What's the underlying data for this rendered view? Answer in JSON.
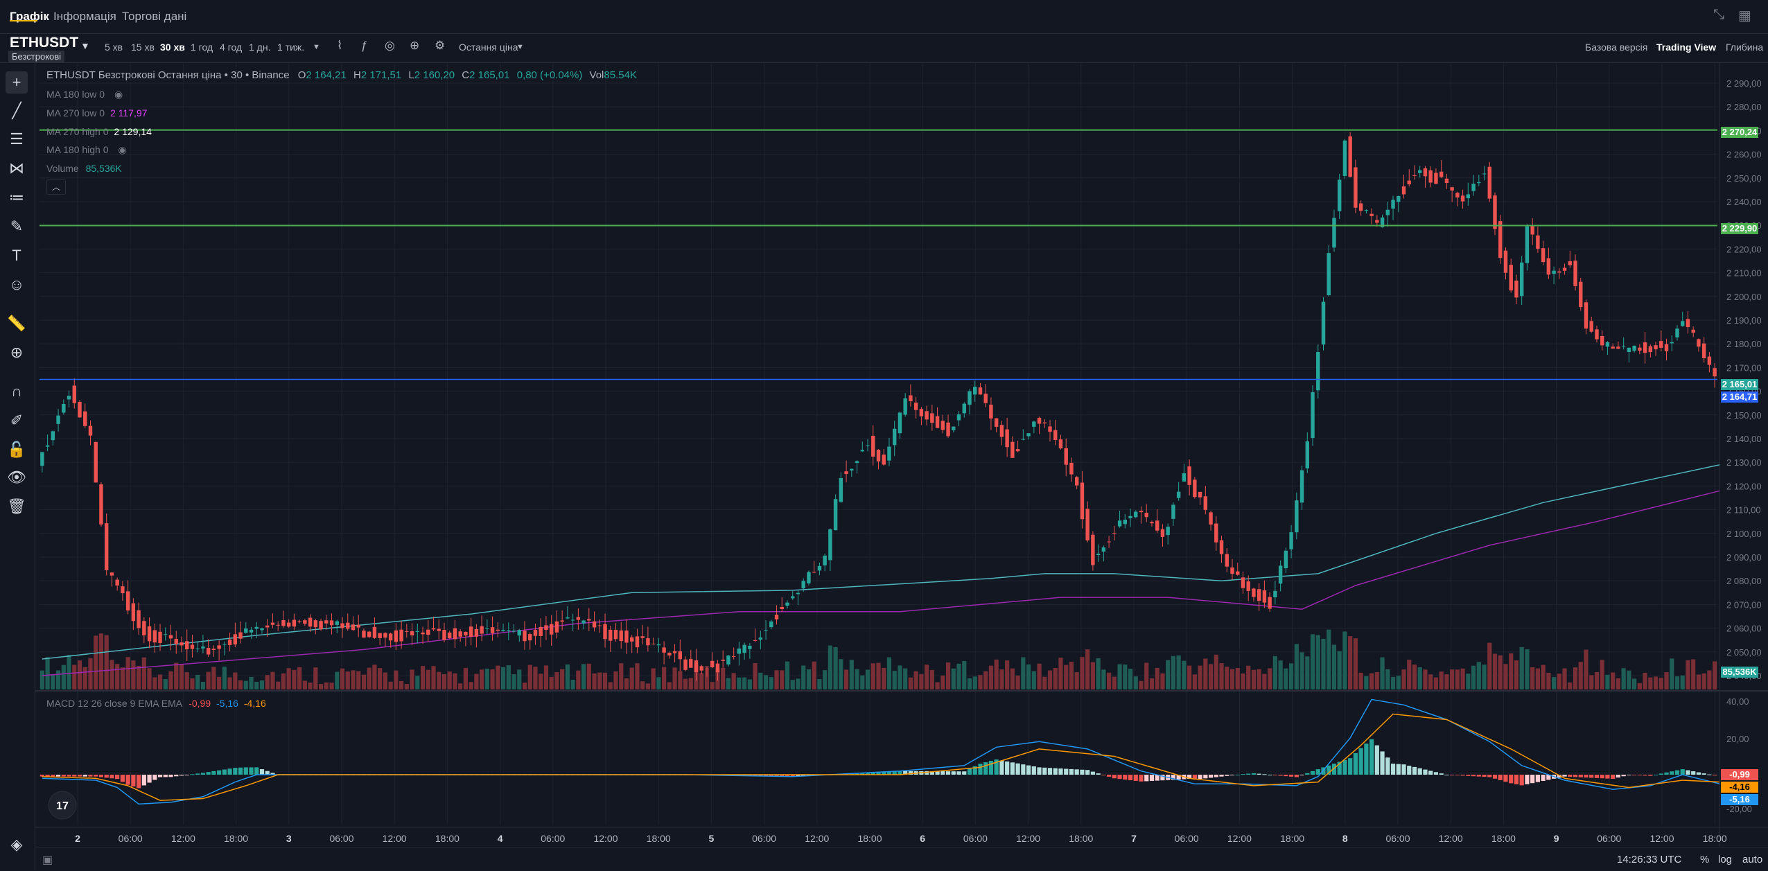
{
  "nav": {
    "tabs": [
      {
        "label": "Графік",
        "active": true
      },
      {
        "label": "Інформація",
        "active": false
      },
      {
        "label": "Торгові дані",
        "active": false
      }
    ]
  },
  "symbol": {
    "name": "ETHUSDT",
    "subtype": "Безстрокові"
  },
  "timeframes": [
    {
      "label": "5 хв",
      "active": false
    },
    {
      "label": "15 хв",
      "active": false
    },
    {
      "label": "30 хв",
      "active": true
    },
    {
      "label": "1 год",
      "active": false
    },
    {
      "label": "4 год",
      "active": false
    },
    {
      "label": "1 дн.",
      "active": false
    },
    {
      "label": "1 тиж.",
      "active": false
    }
  ],
  "toolbar": {
    "price_type": "Остання ціна"
  },
  "view_modes": {
    "basic": "Базова версія",
    "tradingview": "Trading View",
    "depth": "Глибина"
  },
  "legend": {
    "title": "ETHUSDT Безстрокові Остання ціна • 30 • Binance",
    "o_label": "O",
    "o_value": "2 164,21",
    "h_label": "H",
    "h_value": "2 171,51",
    "l_label": "L",
    "l_value": "2 160,20",
    "c_label": "C",
    "c_value": "2 165,01",
    "change": "0,80 (+0.04%)",
    "vol_label": "Vol",
    "vol_value": "85.54K",
    "indicators": [
      {
        "label": "MA 180 low 0",
        "value": "",
        "hidden": true,
        "color": "#787b86"
      },
      {
        "label": "MA 270 low 0",
        "value": "2 117,97",
        "hidden": false,
        "color": "#e040fb"
      },
      {
        "label": "MA 270 high 0",
        "value": "2 129,14",
        "hidden": false,
        "color": "#80deea"
      },
      {
        "label": "MA 180 high 0",
        "value": "",
        "hidden": true,
        "color": "#787b86"
      }
    ],
    "volume_label": "Volume",
    "volume_value": "85,536K",
    "macd_label": "MACD 12 26 close 9 EMA EMA",
    "macd_hist": "-0,99",
    "macd_line": "-5,16",
    "macd_signal": "-4,16"
  },
  "colors": {
    "up": "#26a69a",
    "down": "#ef5350",
    "bg": "#131722",
    "grid": "#1f2330",
    "hline": "#4caf50",
    "lastprice": "#2962ff",
    "ma270low": "#9c27b0",
    "ma270high": "#4fb5bd",
    "macd": "#2196f3",
    "signal": "#ff9800"
  },
  "chart_data": {
    "type": "candlestick",
    "price_axis": {
      "min": 2040,
      "max": 2290,
      "ticks": [
        "2 290,00",
        "2 280,00",
        "2 270,00",
        "2 260,00",
        "2 250,00",
        "2 240,00",
        "2 230,00",
        "2 220,00",
        "2 210,00",
        "2 200,00",
        "2 190,00",
        "2 180,00",
        "2 170,00",
        "2 160,00",
        "2 150,00",
        "2 140,00",
        "2 130,00",
        "2 120,00",
        "2 110,00",
        "2 100,00",
        "2 090,00",
        "2 080,00",
        "2 070,00",
        "2 060,00",
        "2 050,00",
        "2 040,00"
      ]
    },
    "time_axis": [
      "2",
      "06:00",
      "12:00",
      "18:00",
      "3",
      "06:00",
      "12:00",
      "18:00",
      "4",
      "06:00",
      "12:00",
      "18:00",
      "5",
      "06:00",
      "12:00",
      "18:00",
      "6",
      "06:00",
      "12:00",
      "18:00",
      "7",
      "06:00",
      "12:00",
      "18:00",
      "8",
      "06:00",
      "12:00",
      "18:00",
      "9",
      "06:00",
      "12:00",
      "18:00"
    ],
    "path": [
      [
        0,
        2130
      ],
      [
        6,
        2162
      ],
      [
        10,
        2140
      ],
      [
        13,
        2085
      ],
      [
        20,
        2060
      ],
      [
        30,
        2050
      ],
      [
        40,
        2060
      ],
      [
        50,
        2065
      ],
      [
        60,
        2060
      ],
      [
        70,
        2058
      ],
      [
        80,
        2060
      ],
      [
        90,
        2058
      ],
      [
        100,
        2064
      ],
      [
        110,
        2057
      ],
      [
        118,
        2050
      ],
      [
        122,
        2045
      ],
      [
        128,
        2046
      ],
      [
        134,
        2055
      ],
      [
        138,
        2068
      ],
      [
        143,
        2080
      ],
      [
        147,
        2090
      ],
      [
        150,
        2125
      ],
      [
        155,
        2140
      ],
      [
        158,
        2130
      ],
      [
        162,
        2157
      ],
      [
        166,
        2150
      ],
      [
        170,
        2145
      ],
      [
        175,
        2162
      ],
      [
        178,
        2150
      ],
      [
        182,
        2135
      ],
      [
        186,
        2150
      ],
      [
        190,
        2140
      ],
      [
        194,
        2120
      ],
      [
        197,
        2090
      ],
      [
        200,
        2100
      ],
      [
        205,
        2110
      ],
      [
        210,
        2100
      ],
      [
        214,
        2128
      ],
      [
        218,
        2110
      ],
      [
        222,
        2085
      ],
      [
        226,
        2078
      ],
      [
        230,
        2072
      ],
      [
        234,
        2100
      ],
      [
        237,
        2140
      ],
      [
        241,
        2220
      ],
      [
        244,
        2268
      ],
      [
        246,
        2240
      ],
      [
        250,
        2230
      ],
      [
        254,
        2245
      ],
      [
        258,
        2255
      ],
      [
        262,
        2250
      ],
      [
        266,
        2240
      ],
      [
        270,
        2255
      ],
      [
        273,
        2220
      ],
      [
        276,
        2200
      ],
      [
        278,
        2230
      ],
      [
        282,
        2210
      ],
      [
        286,
        2215
      ],
      [
        289,
        2190
      ],
      [
        292,
        2180
      ],
      [
        296,
        2178
      ],
      [
        300,
        2180
      ],
      [
        304,
        2180
      ],
      [
        307,
        2190
      ],
      [
        310,
        2180
      ],
      [
        313,
        2165
      ]
    ],
    "ma270_high": [
      [
        0,
        2047
      ],
      [
        40,
        2057
      ],
      [
        80,
        2066
      ],
      [
        110,
        2075
      ],
      [
        140,
        2076
      ],
      [
        177,
        2081
      ],
      [
        187,
        2083
      ],
      [
        200,
        2083
      ],
      [
        220,
        2080
      ],
      [
        238,
        2083
      ],
      [
        260,
        2100
      ],
      [
        280,
        2113
      ],
      [
        313,
        2129
      ]
    ],
    "ma270_low": [
      [
        0,
        2040
      ],
      [
        60,
        2051
      ],
      [
        100,
        2062
      ],
      [
        130,
        2067
      ],
      [
        160,
        2067
      ],
      [
        190,
        2073
      ],
      [
        210,
        2073
      ],
      [
        235,
        2068
      ],
      [
        245,
        2078
      ],
      [
        270,
        2095
      ],
      [
        290,
        2105
      ],
      [
        313,
        2118
      ]
    ],
    "hlines": [
      2270.24,
      2229.9
    ],
    "hline_labels": [
      "2 270,24",
      "2 229,90"
    ],
    "last_price": 2165.01,
    "last_price_label": "2 165,01",
    "countdown_label": "2 164,71",
    "volume_badge": "85,536K",
    "volume_ticks": [],
    "macd_axis": {
      "ticks": [
        "40,00",
        "20,00",
        "-20,00"
      ]
    },
    "macd_line": [
      [
        0,
        -2
      ],
      [
        10,
        -3
      ],
      [
        14,
        -7
      ],
      [
        18,
        -16
      ],
      [
        24,
        -15
      ],
      [
        30,
        -12
      ],
      [
        36,
        -4
      ],
      [
        40,
        0
      ],
      [
        60,
        0
      ],
      [
        100,
        0
      ],
      [
        120,
        0
      ],
      [
        140,
        -1
      ],
      [
        160,
        2
      ],
      [
        172,
        5
      ],
      [
        178,
        15
      ],
      [
        186,
        18
      ],
      [
        195,
        14
      ],
      [
        205,
        2
      ],
      [
        215,
        -5
      ],
      [
        224,
        -5
      ],
      [
        234,
        -6
      ],
      [
        238,
        -1
      ],
      [
        244,
        20
      ],
      [
        248,
        41
      ],
      [
        254,
        38
      ],
      [
        262,
        30
      ],
      [
        270,
        18
      ],
      [
        276,
        5
      ],
      [
        284,
        -3
      ],
      [
        293,
        -8
      ],
      [
        300,
        -6
      ],
      [
        306,
        0
      ],
      [
        313,
        -5
      ]
    ],
    "signal_line": [
      [
        0,
        -1
      ],
      [
        10,
        -2
      ],
      [
        16,
        -6
      ],
      [
        22,
        -14
      ],
      [
        30,
        -13
      ],
      [
        38,
        -6
      ],
      [
        44,
        0
      ],
      [
        100,
        0
      ],
      [
        160,
        0
      ],
      [
        175,
        4
      ],
      [
        186,
        14
      ],
      [
        200,
        10
      ],
      [
        214,
        -2
      ],
      [
        226,
        -6
      ],
      [
        238,
        -4
      ],
      [
        246,
        16
      ],
      [
        252,
        33
      ],
      [
        262,
        30
      ],
      [
        274,
        14
      ],
      [
        284,
        -2
      ],
      [
        296,
        -7
      ],
      [
        306,
        -3
      ],
      [
        313,
        -4
      ]
    ],
    "macd_hist_label": "-0,99",
    "macd_signal_label": "-4,16",
    "macd_line_label": "-5,16"
  },
  "bottom": {
    "time": "14:26:33 UTC",
    "percent": "%",
    "log": "log",
    "auto": "auto"
  }
}
